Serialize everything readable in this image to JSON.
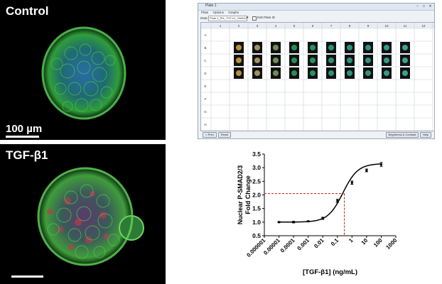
{
  "panels": {
    "control": {
      "label": "Control",
      "scale_label": "100 µm"
    },
    "tgf": {
      "label": "TGF-β1"
    }
  },
  "window": {
    "title": "Plate 1",
    "menu": [
      "Plate",
      "Options",
      "Graphs"
    ],
    "field_label": "Data:",
    "field_value": "Plate 1_Pfe_TGF-b1_SMAD23_Conc_...",
    "checkbox_label": "Edit Plate ID",
    "columns": [
      "1",
      "2",
      "3",
      "4",
      "5",
      "6",
      "7",
      "8",
      "9",
      "10",
      "11",
      "12"
    ],
    "rows": [
      "A",
      "B",
      "C",
      "D",
      "E",
      "F",
      "G",
      "H"
    ],
    "buttons": {
      "left1": "< Prev",
      "left2": "Reset",
      "right1": "Brightness & Contrast",
      "right2": "Help"
    }
  },
  "chart_data": {
    "type": "scatter",
    "title": "",
    "xlabel": "[TGF-β1] (ng/mL)",
    "ylabel_lines": [
      "Nuclear P-SMAD2/3",
      "Fold Change"
    ],
    "x_scale": "log",
    "xlim": [
      1e-06,
      1000
    ],
    "ylim": [
      0.5,
      3.5
    ],
    "x_ticks": [
      "0.000001",
      "0.00001",
      "0.0001",
      "0.001",
      "0.01",
      "0.1",
      "1",
      "10",
      "100",
      "1000"
    ],
    "y_ticks": [
      "0.5",
      "1.0",
      "1.5",
      "2.0",
      "2.5",
      "3.0",
      "3.5"
    ],
    "points": [
      {
        "x": 1e-05,
        "y": 1.0,
        "err": 0.02
      },
      {
        "x": 0.0001,
        "y": 1.0,
        "err": 0.03
      },
      {
        "x": 0.001,
        "y": 1.03,
        "err": 0.02
      },
      {
        "x": 0.01,
        "y": 1.14,
        "err": 0.04
      },
      {
        "x": 0.1,
        "y": 1.78,
        "err": 0.06
      },
      {
        "x": 1,
        "y": 2.45,
        "err": 0.06
      },
      {
        "x": 10,
        "y": 2.9,
        "err": 0.05
      },
      {
        "x": 100,
        "y": 3.12,
        "err": 0.07
      }
    ],
    "fit": {
      "bottom": 1.0,
      "top": 3.15,
      "logEC50": -0.62,
      "hill": 0.85
    },
    "reference_lines": {
      "y": 2.05,
      "x": 0.3
    }
  }
}
